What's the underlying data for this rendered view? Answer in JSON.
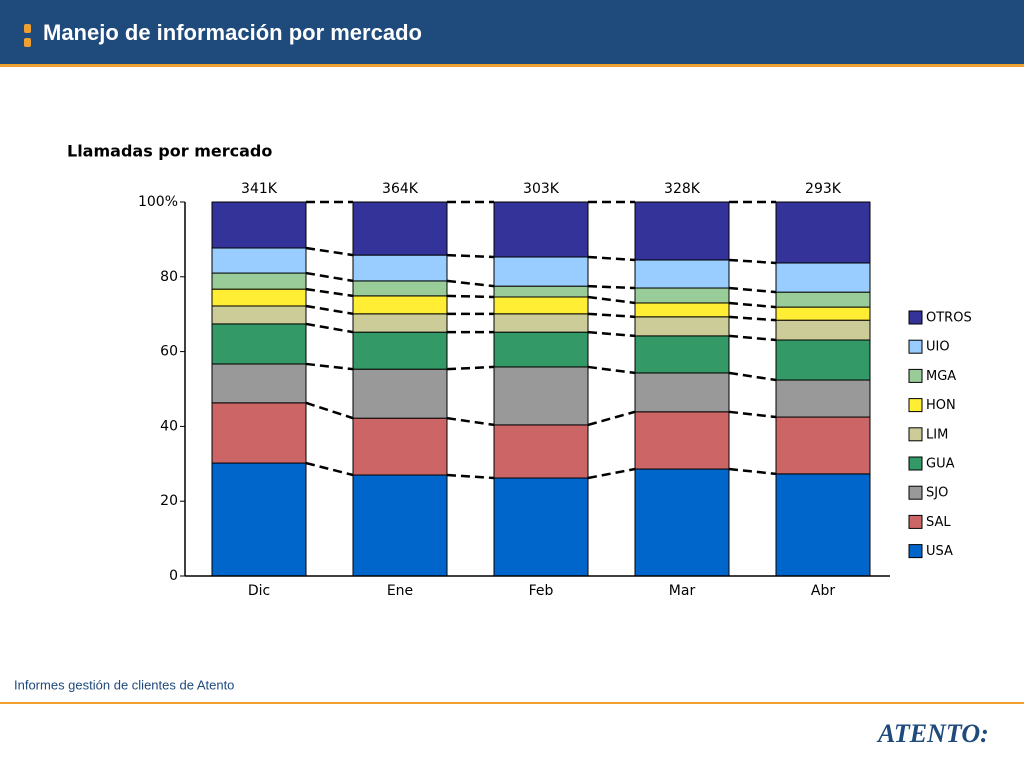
{
  "header": {
    "title": "Manejo de información por mercado"
  },
  "chart_data": {
    "type": "stacked_bar",
    "title": "Llamadas por mercado",
    "categories": [
      "Dic",
      "Ene",
      "Feb",
      "Mar",
      "Abr"
    ],
    "series": [
      {
        "name": "USA",
        "color": "#0066cc",
        "values": [
          30.2,
          27.0,
          26.2,
          28.6,
          27.3
        ]
      },
      {
        "name": "SAL",
        "color": "#cc6666",
        "values": [
          16.1,
          15.2,
          14.2,
          15.3,
          15.2
        ]
      },
      {
        "name": "SJO",
        "color": "#999999",
        "values": [
          10.4,
          13.1,
          15.5,
          10.4,
          9.9
        ]
      },
      {
        "name": "GUA",
        "color": "#339966",
        "values": [
          10.7,
          9.9,
          9.3,
          9.9,
          10.7
        ]
      },
      {
        "name": "LIM",
        "color": "#cccc99",
        "values": [
          4.8,
          4.9,
          4.9,
          5.1,
          5.3
        ]
      },
      {
        "name": "HON",
        "color": "#ffee33",
        "values": [
          4.5,
          4.8,
          4.5,
          3.7,
          3.5
        ]
      },
      {
        "name": "MGA",
        "color": "#99cc99",
        "values": [
          4.3,
          4.0,
          2.9,
          4.0,
          4.0
        ]
      },
      {
        "name": "UIO",
        "color": "#99ccff",
        "values": [
          6.7,
          6.9,
          7.8,
          7.5,
          7.8
        ]
      },
      {
        "name": "OTROS",
        "color": "#333399",
        "values": [
          12.3,
          14.2,
          14.7,
          15.5,
          16.3
        ]
      }
    ],
    "totals": {
      "values": [
        341000,
        364000,
        303000,
        328000,
        293000
      ],
      "value_labels": [
        "341K",
        "364K",
        "303K",
        "328K",
        "293K"
      ]
    },
    "ylim": [
      0,
      100
    ],
    "yticks": [
      0,
      20,
      40,
      60,
      80,
      {
        "value": 100,
        "label": "100%"
      }
    ],
    "legend": "right"
  },
  "footer": {
    "text": "Informes gestión de clientes de Atento",
    "logo": "ATENTO:"
  }
}
